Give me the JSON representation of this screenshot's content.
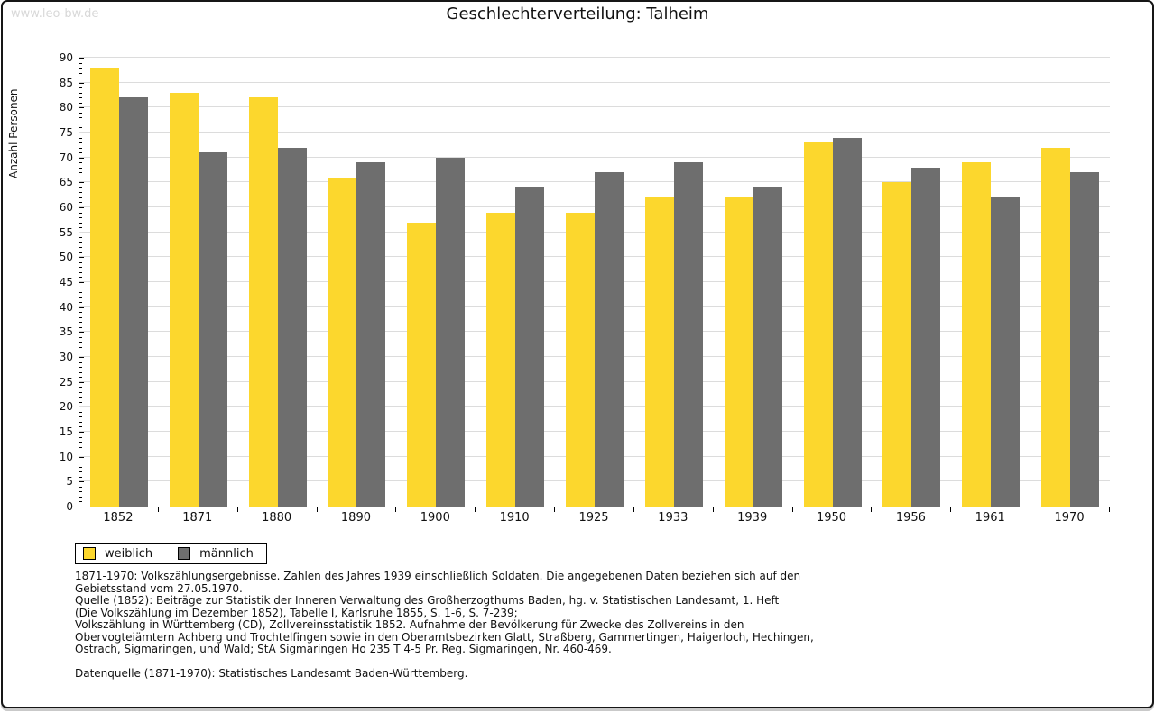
{
  "page": {
    "watermark": "www.leo-bw.de",
    "title": "Geschlechterverteilung: Talheim"
  },
  "chart_data": {
    "type": "bar",
    "title": "Geschlechterverteilung: Talheim",
    "xlabel": "",
    "ylabel": "Anzahl Personen",
    "ylim": [
      0,
      90
    ],
    "ytick_step": 5,
    "grid": true,
    "legend_position": "bottom-left",
    "categories": [
      "1852",
      "1871",
      "1880",
      "1890",
      "1900",
      "1910",
      "1925",
      "1933",
      "1939",
      "1950",
      "1956",
      "1961",
      "1970"
    ],
    "series": [
      {
        "name": "weiblich",
        "color": "#FCD72D",
        "values": [
          88,
          83,
          82,
          66,
          57,
          59,
          59,
          62,
          62,
          73,
          65,
          69,
          72
        ]
      },
      {
        "name": "männlich",
        "color": "#6E6E6E",
        "values": [
          82,
          71,
          72,
          69,
          70,
          64,
          67,
          69,
          64,
          74,
          68,
          62,
          67
        ]
      }
    ]
  },
  "footnotes": {
    "lines": [
      "1871-1970: Volkszählungsergebnisse. Zahlen des Jahres 1939 einschließlich Soldaten. Die angegebenen Daten beziehen sich auf den",
      "Gebietsstand vom 27.05.1970.",
      "Quelle (1852): Beiträge zur Statistik der Inneren Verwaltung des Großherzogthums Baden, hg. v. Statistischen Landesamt, 1. Heft",
      "(Die Volkszählung im Dezember 1852), Tabelle I, Karlsruhe 1855, S. 1-6, S. 7-239;",
      "Volkszählung in Württemberg (CD), Zollvereinsstatistik 1852. Aufnahme der Bevölkerung für Zwecke des Zollvereins in den",
      "Obervogteiämtern Achberg und Trochtelfingen sowie in den Oberamtsbezirken Glatt, Straßberg, Gammertingen, Haigerloch, Hechingen,",
      "Ostrach, Sigmaringen, und Wald; StA Sigmaringen Ho 235 T 4-5 Pr. Reg. Sigmaringen, Nr. 460-469.",
      "Datenquelle (1871-1970): Statistisches Landesamt Baden-Württemberg."
    ]
  }
}
